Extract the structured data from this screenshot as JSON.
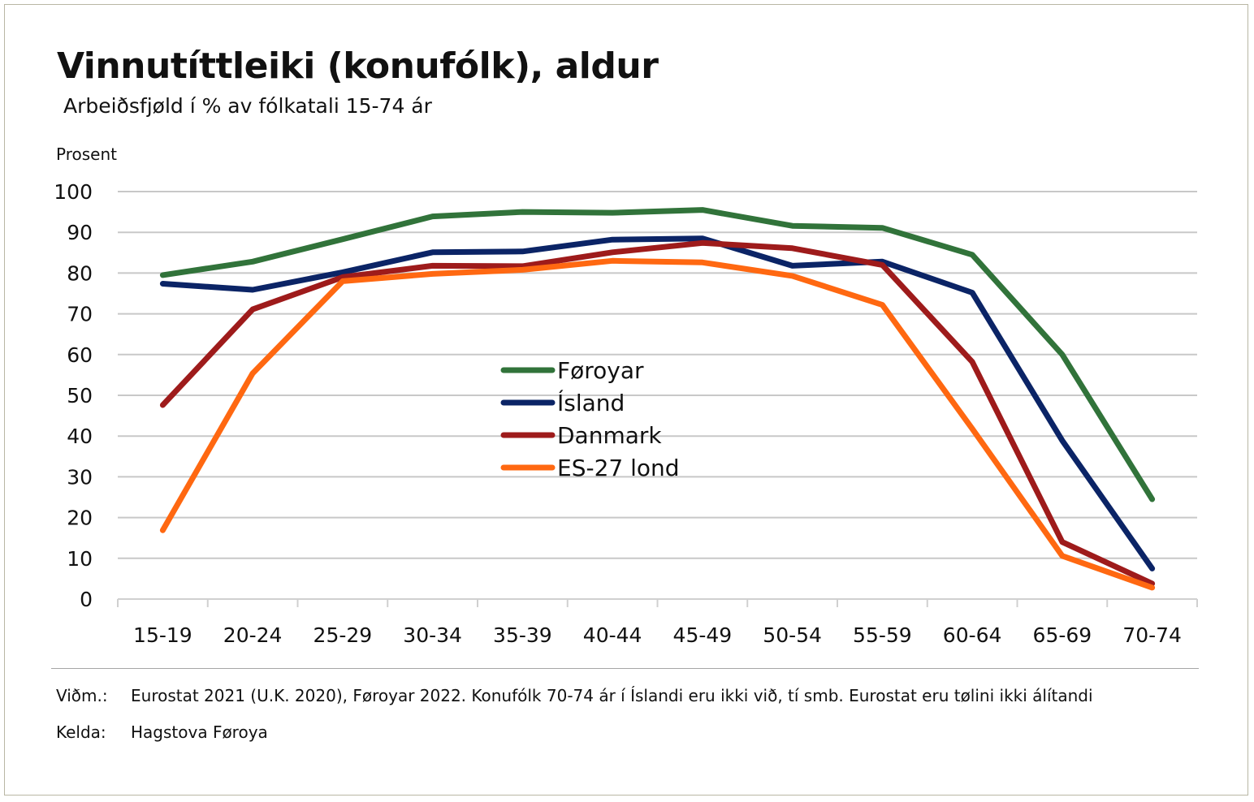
{
  "chart_data": {
    "type": "line",
    "title": "Vinnutíttleiki (konufólk), aldur",
    "subtitle": "Arbeiðsfjøld í % av fólkatali 15-74 ár",
    "ylabel": "Prosent",
    "xlabel": "",
    "ylim": [
      0,
      100
    ],
    "yticks": [
      "0",
      "10",
      "20",
      "30",
      "40",
      "50",
      "60",
      "70",
      "80",
      "90",
      "100"
    ],
    "categories": [
      "15-19",
      "20-24",
      "25-29",
      "30-34",
      "35-39",
      "40-44",
      "45-49",
      "50-54",
      "55-59",
      "60-64",
      "65-69",
      "70-74"
    ],
    "grid": true,
    "legend_position": "center",
    "series": [
      {
        "name": "Føroyar",
        "color": "#31733a",
        "values": [
          79.5,
          82.8,
          88.3,
          93.9,
          95.0,
          94.8,
          95.5,
          91.6,
          91.1,
          84.5,
          60.0,
          24.5
        ]
      },
      {
        "name": "Ísland",
        "color": "#0b2466",
        "values": [
          77.4,
          75.9,
          80.2,
          85.1,
          85.3,
          88.2,
          88.5,
          81.8,
          82.8,
          75.2,
          38.9,
          7.5
        ]
      },
      {
        "name": "Danmark",
        "color": "#9e1b1b",
        "values": [
          47.6,
          71.1,
          79.0,
          81.8,
          81.7,
          85.1,
          87.4,
          86.1,
          82.0,
          58.2,
          14.0,
          3.8
        ]
      },
      {
        "name": "ES-27 lond",
        "color": "#ff6811",
        "values": [
          16.9,
          55.4,
          78.0,
          79.8,
          80.8,
          83.0,
          82.6,
          79.3,
          72.2,
          41.8,
          10.6,
          2.8
        ]
      }
    ]
  },
  "footnotes": {
    "note_label": "Viðm.:",
    "note_text": "Eurostat 2021 (U.K. 2020), Føroyar 2022. Konufólk 70-74 ár í Íslandi eru ikki við, tí smb. Eurostat eru tølini ikki álítandi",
    "source_label": "Kelda:",
    "source_text": "Hagstova Føroya"
  }
}
